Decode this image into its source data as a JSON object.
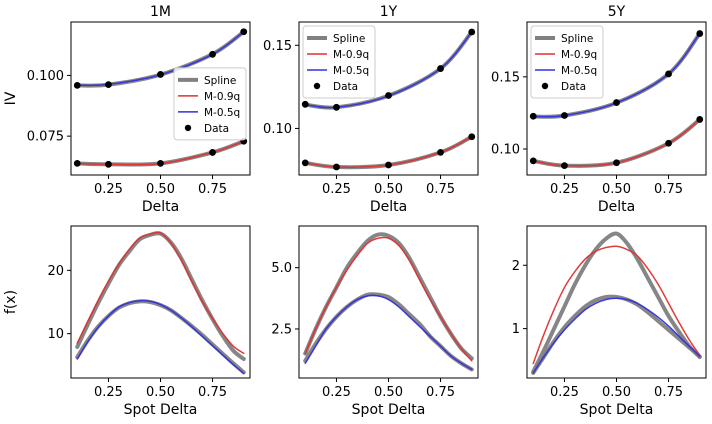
{
  "chart_data": [
    {
      "id": "iv-1m",
      "type": "line",
      "title": "1M",
      "xlabel": "Delta",
      "ylabel": "IV",
      "xlim": [
        0.07,
        0.93
      ],
      "ylim": [
        0.059,
        0.122
      ],
      "xticks": [
        0.25,
        0.5,
        0.75
      ],
      "xtick_labels": [
        "0.25",
        "0.50",
        "0.75"
      ],
      "yticks": [
        0.075,
        0.1
      ],
      "ytick_labels": [
        "0.075",
        "0.100"
      ],
      "legend": true,
      "legend_position": "center-right",
      "series": [
        {
          "name": "Spline",
          "color": "#808080",
          "width": 4,
          "x": [
            0.1,
            0.25,
            0.5,
            0.75,
            0.9
          ],
          "y": [
            0.0959,
            0.0962,
            0.1003,
            0.1088,
            0.118
          ]
        },
        {
          "name": "M-0.9q",
          "color": "#e03030",
          "width": 1.5,
          "x": [
            0.1,
            0.25,
            0.5,
            0.75,
            0.9
          ],
          "y": [
            0.0637,
            0.0634,
            0.0637,
            0.0683,
            0.0729
          ]
        },
        {
          "name": "M-0.5q",
          "color": "#3030e0",
          "width": 1.5,
          "x": [
            0.1,
            0.25,
            0.5,
            0.75,
            0.9
          ],
          "y": [
            0.096,
            0.0963,
            0.1003,
            0.1087,
            0.118
          ]
        },
        {
          "name": "Data",
          "color": "#000000",
          "marker": true,
          "x": [
            0.1,
            0.25,
            0.5,
            0.75,
            0.9,
            0.1,
            0.25,
            0.5,
            0.75,
            0.9
          ],
          "y": [
            0.0959,
            0.0962,
            0.1004,
            0.1087,
            0.118,
            0.0638,
            0.0634,
            0.0638,
            0.0683,
            0.0729
          ]
        }
      ],
      "band_series": [
        {
          "name": "Spline",
          "color": "#808080",
          "width": 4,
          "x": [
            0.1,
            0.25,
            0.5,
            0.75,
            0.9
          ],
          "y": [
            0.0638,
            0.0634,
            0.0638,
            0.0683,
            0.0729
          ]
        }
      ]
    },
    {
      "id": "iv-1y",
      "type": "line",
      "title": "1Y",
      "xlabel": "Delta",
      "ylabel": "",
      "xlim": [
        0.07,
        0.93
      ],
      "ylim": [
        0.072,
        0.164
      ],
      "xticks": [
        0.25,
        0.5,
        0.75
      ],
      "xtick_labels": [
        "0.25",
        "0.50",
        "0.75"
      ],
      "yticks": [
        0.1,
        0.15
      ],
      "ytick_labels": [
        "0.10",
        "0.15"
      ],
      "legend": true,
      "legend_position": "top-left",
      "series": [
        {
          "name": "Spline",
          "color": "#808080",
          "width": 4,
          "x": [
            0.1,
            0.25,
            0.5,
            0.75,
            0.9
          ],
          "y": [
            0.1143,
            0.1127,
            0.1197,
            0.136,
            0.158
          ]
        },
        {
          "name": "M-0.9q",
          "color": "#e03030",
          "width": 1.5,
          "x": [
            0.1,
            0.25,
            0.5,
            0.75,
            0.9
          ],
          "y": [
            0.0793,
            0.0768,
            0.078,
            0.0856,
            0.095
          ]
        },
        {
          "name": "M-0.5q",
          "color": "#3030e0",
          "width": 1.5,
          "x": [
            0.1,
            0.25,
            0.5,
            0.75,
            0.9
          ],
          "y": [
            0.1143,
            0.1127,
            0.1196,
            0.136,
            0.158
          ]
        },
        {
          "name": "Data",
          "color": "#000000",
          "marker": true,
          "x": [
            0.1,
            0.25,
            0.5,
            0.75,
            0.9,
            0.1,
            0.25,
            0.5,
            0.75,
            0.9
          ],
          "y": [
            0.1145,
            0.1127,
            0.1198,
            0.136,
            0.158,
            0.0793,
            0.0768,
            0.078,
            0.0856,
            0.095
          ]
        }
      ],
      "band_series": [
        {
          "name": "Spline",
          "color": "#808080",
          "width": 4,
          "x": [
            0.1,
            0.25,
            0.5,
            0.75,
            0.9
          ],
          "y": [
            0.0793,
            0.0768,
            0.078,
            0.0856,
            0.095
          ]
        }
      ]
    },
    {
      "id": "iv-5y",
      "type": "line",
      "title": "5Y",
      "xlabel": "Delta",
      "ylabel": "",
      "xlim": [
        0.07,
        0.93
      ],
      "ylim": [
        0.082,
        0.188
      ],
      "xticks": [
        0.25,
        0.5,
        0.75
      ],
      "xtick_labels": [
        "0.25",
        "0.50",
        "0.75"
      ],
      "yticks": [
        0.1,
        0.15
      ],
      "ytick_labels": [
        "0.10",
        "0.15"
      ],
      "legend": true,
      "legend_position": "top-left",
      "series": [
        {
          "name": "Spline",
          "color": "#808080",
          "width": 4,
          "x": [
            0.1,
            0.25,
            0.5,
            0.75,
            0.9
          ],
          "y": [
            0.1225,
            0.1232,
            0.132,
            0.152,
            0.18
          ]
        },
        {
          "name": "M-0.9q",
          "color": "#e03030",
          "width": 1.5,
          "x": [
            0.1,
            0.25,
            0.5,
            0.75,
            0.9
          ],
          "y": [
            0.0918,
            0.0885,
            0.0905,
            0.104,
            0.1205
          ]
        },
        {
          "name": "M-0.5q",
          "color": "#3030e0",
          "width": 1.5,
          "x": [
            0.1,
            0.25,
            0.5,
            0.75,
            0.9
          ],
          "y": [
            0.1225,
            0.1232,
            0.132,
            0.152,
            0.18
          ]
        },
        {
          "name": "Data",
          "color": "#000000",
          "marker": true,
          "x": [
            0.1,
            0.25,
            0.5,
            0.75,
            0.9,
            0.1,
            0.25,
            0.5,
            0.75,
            0.9
          ],
          "y": [
            0.1227,
            0.1232,
            0.1322,
            0.152,
            0.18,
            0.0918,
            0.0885,
            0.0905,
            0.104,
            0.1205
          ]
        }
      ],
      "band_series": [
        {
          "name": "Spline",
          "color": "#808080",
          "width": 4,
          "x": [
            0.1,
            0.25,
            0.5,
            0.75,
            0.9
          ],
          "y": [
            0.0918,
            0.0885,
            0.0905,
            0.104,
            0.1205
          ]
        }
      ]
    },
    {
      "id": "pdf-1m",
      "type": "line",
      "title": "",
      "xlabel": "Spot Delta",
      "ylabel": "f(x)",
      "xlim": [
        0.07,
        0.93
      ],
      "ylim": [
        3.0,
        27.0
      ],
      "xticks": [
        0.25,
        0.5,
        0.75
      ],
      "xtick_labels": [
        "0.25",
        "0.50",
        "0.75"
      ],
      "yticks": [
        10,
        20
      ],
      "ytick_labels": [
        "10",
        "20"
      ],
      "legend": false,
      "series": [
        {
          "name": "Spline",
          "color": "#808080",
          "width": 4,
          "x": [
            0.1,
            0.15,
            0.2,
            0.25,
            0.3,
            0.35,
            0.4,
            0.45,
            0.5,
            0.55,
            0.6,
            0.65,
            0.7,
            0.75,
            0.8,
            0.85,
            0.9
          ],
          "y": [
            7.9,
            11.4,
            14.8,
            17.9,
            20.8,
            23.0,
            24.9,
            25.6,
            25.8,
            24.4,
            21.9,
            18.6,
            15.3,
            12.3,
            9.6,
            7.3,
            6.0
          ]
        },
        {
          "name": "M-0.9q",
          "color": "#e03030",
          "width": 1.5,
          "x": [
            0.1,
            0.15,
            0.2,
            0.25,
            0.3,
            0.35,
            0.4,
            0.45,
            0.5,
            0.55,
            0.6,
            0.65,
            0.7,
            0.75,
            0.8,
            0.85,
            0.9
          ],
          "y": [
            8.5,
            11.9,
            15.2,
            18.3,
            21.0,
            23.3,
            25.1,
            25.7,
            25.9,
            24.3,
            21.6,
            18.3,
            15.1,
            12.4,
            10.0,
            8.0,
            6.9
          ]
        },
        {
          "name": "Spline",
          "color": "#808080",
          "width": 4,
          "x": [
            0.1,
            0.15,
            0.2,
            0.25,
            0.3,
            0.35,
            0.4,
            0.45,
            0.5,
            0.55,
            0.6,
            0.65,
            0.7,
            0.75,
            0.8,
            0.85,
            0.9
          ],
          "y": [
            6.3,
            8.9,
            11.1,
            12.8,
            14.1,
            14.8,
            15.1,
            15.0,
            14.5,
            13.7,
            12.5,
            11.2,
            9.8,
            8.3,
            6.8,
            5.3,
            3.9
          ]
        },
        {
          "name": "M-0.5q",
          "color": "#3030e0",
          "width": 1.5,
          "x": [
            0.1,
            0.15,
            0.2,
            0.25,
            0.3,
            0.35,
            0.4,
            0.45,
            0.5,
            0.55,
            0.6,
            0.65,
            0.7,
            0.75,
            0.8,
            0.85,
            0.9
          ],
          "y": [
            6.0,
            8.7,
            11.0,
            12.8,
            14.2,
            14.9,
            15.2,
            15.1,
            14.6,
            13.7,
            12.5,
            11.1,
            9.6,
            8.1,
            6.6,
            5.1,
            3.7
          ]
        }
      ]
    },
    {
      "id": "pdf-1y",
      "type": "line",
      "title": "",
      "xlabel": "Spot Delta",
      "ylabel": "",
      "xlim": [
        0.07,
        0.93
      ],
      "ylim": [
        0.5,
        6.7
      ],
      "xticks": [
        0.25,
        0.5,
        0.75
      ],
      "xtick_labels": [
        "0.25",
        "0.50",
        "0.75"
      ],
      "yticks": [
        2.5,
        5.0
      ],
      "ytick_labels": [
        "2.5",
        "5.0"
      ],
      "legend": false,
      "series": [
        {
          "name": "Spline",
          "color": "#808080",
          "width": 4,
          "x": [
            0.1,
            0.15,
            0.2,
            0.25,
            0.3,
            0.35,
            0.4,
            0.45,
            0.5,
            0.55,
            0.6,
            0.65,
            0.7,
            0.75,
            0.8,
            0.85,
            0.9
          ],
          "y": [
            1.5,
            2.5,
            3.4,
            4.2,
            5.0,
            5.6,
            6.1,
            6.35,
            6.3,
            6.0,
            5.4,
            4.6,
            3.8,
            3.0,
            2.3,
            1.7,
            1.3
          ]
        },
        {
          "name": "M-0.9q",
          "color": "#e03030",
          "width": 1.5,
          "x": [
            0.1,
            0.15,
            0.2,
            0.25,
            0.3,
            0.35,
            0.4,
            0.45,
            0.5,
            0.55,
            0.6,
            0.65,
            0.7,
            0.75,
            0.8,
            0.85,
            0.9
          ],
          "y": [
            1.5,
            2.5,
            3.4,
            4.2,
            4.9,
            5.5,
            6.0,
            6.2,
            6.2,
            5.9,
            5.3,
            4.5,
            3.7,
            3.0,
            2.3,
            1.7,
            1.2
          ]
        },
        {
          "name": "Spline",
          "color": "#808080",
          "width": 4,
          "x": [
            0.1,
            0.15,
            0.2,
            0.25,
            0.3,
            0.35,
            0.4,
            0.45,
            0.5,
            0.55,
            0.6,
            0.65,
            0.7,
            0.75,
            0.8,
            0.85,
            0.9
          ],
          "y": [
            1.2,
            1.9,
            2.5,
            3.0,
            3.4,
            3.7,
            3.9,
            3.9,
            3.8,
            3.5,
            3.1,
            2.7,
            2.2,
            1.8,
            1.4,
            1.1,
            0.85
          ]
        },
        {
          "name": "M-0.5q",
          "color": "#3030e0",
          "width": 1.5,
          "x": [
            0.1,
            0.15,
            0.2,
            0.25,
            0.3,
            0.35,
            0.4,
            0.45,
            0.5,
            0.55,
            0.6,
            0.65,
            0.7,
            0.75,
            0.8,
            0.85,
            0.9
          ],
          "y": [
            1.1,
            1.8,
            2.5,
            3.0,
            3.4,
            3.7,
            3.85,
            3.85,
            3.7,
            3.4,
            3.0,
            2.6,
            2.2,
            1.8,
            1.4,
            1.1,
            0.85
          ]
        }
      ]
    },
    {
      "id": "pdf-5y",
      "type": "line",
      "title": "",
      "xlabel": "Spot Delta",
      "ylabel": "",
      "xlim": [
        0.07,
        0.93
      ],
      "ylim": [
        0.22,
        2.62
      ],
      "xticks": [
        0.25,
        0.5,
        0.75
      ],
      "xtick_labels": [
        "0.25",
        "0.50",
        "0.75"
      ],
      "yticks": [
        1,
        2
      ],
      "ytick_labels": [
        "1",
        "2"
      ],
      "legend": false,
      "series": [
        {
          "name": "Spline",
          "color": "#808080",
          "width": 4,
          "x": [
            0.1,
            0.15,
            0.2,
            0.25,
            0.3,
            0.35,
            0.4,
            0.45,
            0.5,
            0.55,
            0.6,
            0.65,
            0.7,
            0.75,
            0.8,
            0.85,
            0.9
          ],
          "y": [
            0.32,
            0.65,
            1.0,
            1.35,
            1.7,
            2.0,
            2.25,
            2.42,
            2.5,
            2.35,
            2.1,
            1.8,
            1.5,
            1.2,
            0.95,
            0.72,
            0.55
          ]
        },
        {
          "name": "M-0.9q",
          "color": "#e03030",
          "width": 1.5,
          "x": [
            0.1,
            0.15,
            0.2,
            0.25,
            0.3,
            0.35,
            0.4,
            0.45,
            0.5,
            0.55,
            0.6,
            0.65,
            0.7,
            0.75,
            0.8,
            0.85,
            0.9
          ],
          "y": [
            0.45,
            0.9,
            1.3,
            1.65,
            1.9,
            2.1,
            2.22,
            2.28,
            2.3,
            2.25,
            2.15,
            1.95,
            1.7,
            1.4,
            1.1,
            0.82,
            0.58
          ]
        },
        {
          "name": "Spline",
          "color": "#808080",
          "width": 4,
          "x": [
            0.1,
            0.15,
            0.2,
            0.25,
            0.3,
            0.35,
            0.4,
            0.45,
            0.5,
            0.55,
            0.6,
            0.65,
            0.7,
            0.75,
            0.8,
            0.85,
            0.9
          ],
          "y": [
            0.3,
            0.55,
            0.8,
            1.02,
            1.2,
            1.35,
            1.45,
            1.5,
            1.5,
            1.46,
            1.38,
            1.26,
            1.12,
            0.98,
            0.84,
            0.7,
            0.56
          ]
        },
        {
          "name": "M-0.5q",
          "color": "#3030e0",
          "width": 1.5,
          "x": [
            0.1,
            0.15,
            0.2,
            0.25,
            0.3,
            0.35,
            0.4,
            0.45,
            0.5,
            0.55,
            0.6,
            0.65,
            0.7,
            0.75,
            0.8,
            0.85,
            0.9
          ],
          "y": [
            0.3,
            0.55,
            0.78,
            0.98,
            1.15,
            1.3,
            1.4,
            1.46,
            1.48,
            1.46,
            1.4,
            1.3,
            1.18,
            1.04,
            0.88,
            0.72,
            0.56
          ]
        }
      ]
    }
  ]
}
